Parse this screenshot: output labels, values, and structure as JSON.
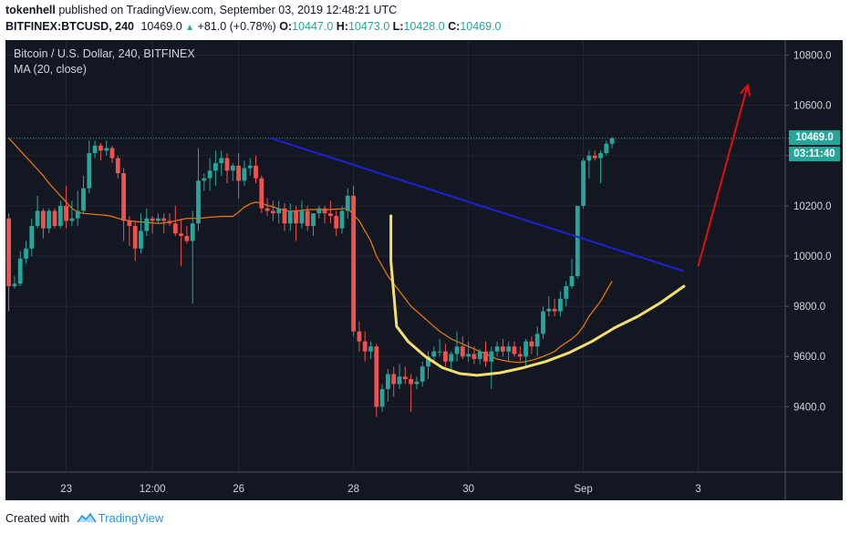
{
  "header": {
    "publisher": "tokenhell",
    "published_text": "published on TradingView.com, September 03, 2019 12:48:21 UTC",
    "symbol": "BITFINEX:BTCUSD, 240",
    "last": "10469.0",
    "change_icon": "triangle-up-icon",
    "change": "+81.0 (+0.78%)",
    "o_label": "O:",
    "o_value": "10447.0",
    "h_label": "H:",
    "h_value": "10473.0",
    "l_label": "L:",
    "l_value": "10428.0",
    "c_label": "C:",
    "c_value": "10469.0"
  },
  "legend": {
    "title": "Bitcoin / U.S. Dollar, 240, BITFINEX",
    "ma": "MA (20, close)"
  },
  "price_tags": {
    "last_price": "10469.0",
    "countdown": "03:11:40"
  },
  "footer": {
    "created_with": "Created with",
    "brand": "TradingView",
    "logo_icon": "tradingview-logo-icon"
  },
  "colors": {
    "background": "#131722",
    "up": "#26a69a",
    "down": "#ef5350",
    "ma_line": "#f57c00",
    "trendline": "#1f1fd8",
    "cup_curve": "#f5df6e",
    "arrow": "#e01010",
    "grid": "#242733",
    "axis_text": "#d1d4dc"
  },
  "chart_data": {
    "type": "candlestick",
    "title": "Bitcoin / U.S. Dollar, 240, BITFINEX",
    "timeframe": "240",
    "y_ticks": [
      "9400.0",
      "9600.0",
      "9800.0",
      "10000.0",
      "10200.0",
      "10400.0",
      "10600.0",
      "10800.0"
    ],
    "ylim": [
      9140,
      10860
    ],
    "x_ticks": [
      {
        "label": "23",
        "index": 10
      },
      {
        "label": "12:00",
        "index": 25
      },
      {
        "label": "26",
        "index": 40
      },
      {
        "label": "28",
        "index": 60
      },
      {
        "label": "30",
        "index": 80
      },
      {
        "label": "Sep",
        "index": 100
      },
      {
        "label": "3",
        "index": 120
      }
    ],
    "grid": true,
    "candles": [
      [
        10150,
        10170,
        9780,
        9880
      ],
      [
        9880,
        9920,
        9870,
        9890
      ],
      [
        9890,
        10020,
        9880,
        9990
      ],
      [
        9990,
        10060,
        9970,
        10030
      ],
      [
        10030,
        10150,
        10000,
        10120
      ],
      [
        10120,
        10240,
        10110,
        10180
      ],
      [
        10180,
        10190,
        10070,
        10110
      ],
      [
        10110,
        10190,
        10090,
        10180
      ],
      [
        10180,
        10190,
        10110,
        10120
      ],
      [
        10120,
        10220,
        10110,
        10200
      ],
      [
        10200,
        10280,
        10110,
        10140
      ],
      [
        10140,
        10220,
        10120,
        10150
      ],
      [
        10150,
        10260,
        10120,
        10180
      ],
      [
        10180,
        10320,
        10170,
        10270
      ],
      [
        10270,
        10460,
        10250,
        10410
      ],
      [
        10410,
        10460,
        10390,
        10440
      ],
      [
        10440,
        10450,
        10380,
        10420
      ],
      [
        10420,
        10460,
        10400,
        10430
      ],
      [
        10430,
        10440,
        10370,
        10390
      ],
      [
        10390,
        10400,
        10310,
        10330
      ],
      [
        10330,
        10350,
        10060,
        10140
      ],
      [
        10140,
        10160,
        10040,
        10120
      ],
      [
        10120,
        10140,
        9980,
        10030
      ],
      [
        10030,
        10170,
        10010,
        10100
      ],
      [
        10100,
        10190,
        10080,
        10150
      ],
      [
        10150,
        10160,
        10090,
        10140
      ],
      [
        10140,
        10170,
        10130,
        10150
      ],
      [
        10150,
        10170,
        10090,
        10140
      ],
      [
        10140,
        10170,
        10120,
        10130
      ],
      [
        10130,
        10200,
        10080,
        10090
      ],
      [
        10090,
        10150,
        9960,
        10080
      ],
      [
        10080,
        10120,
        10050,
        10060
      ],
      [
        10060,
        10180,
        9810,
        10130
      ],
      [
        10130,
        10430,
        10100,
        10300
      ],
      [
        10300,
        10330,
        10260,
        10310
      ],
      [
        10310,
        10390,
        10260,
        10340
      ],
      [
        10340,
        10420,
        10280,
        10370
      ],
      [
        10370,
        10420,
        10320,
        10390
      ],
      [
        10390,
        10410,
        10290,
        10340
      ],
      [
        10340,
        10370,
        10300,
        10360
      ],
      [
        10360,
        10410,
        10230,
        10300
      ],
      [
        10300,
        10380,
        10280,
        10350
      ],
      [
        10350,
        10390,
        10320,
        10360
      ],
      [
        10360,
        10400,
        10290,
        10310
      ],
      [
        10310,
        10320,
        10170,
        10190
      ],
      [
        10190,
        10230,
        10160,
        10180
      ],
      [
        10180,
        10220,
        10140,
        10170
      ],
      [
        10170,
        10220,
        10130,
        10190
      ],
      [
        10190,
        10210,
        10100,
        10130
      ],
      [
        10130,
        10210,
        10100,
        10180
      ],
      [
        10180,
        10200,
        10060,
        10130
      ],
      [
        10130,
        10220,
        10110,
        10180
      ],
      [
        10180,
        10200,
        10100,
        10120
      ],
      [
        10120,
        10160,
        10080,
        10170
      ],
      [
        10170,
        10200,
        10150,
        10190
      ],
      [
        10190,
        10200,
        10130,
        10170
      ],
      [
        10170,
        10220,
        10130,
        10160
      ],
      [
        10160,
        10180,
        10080,
        10110
      ],
      [
        10110,
        10200,
        10090,
        10180
      ],
      [
        10180,
        10270,
        10150,
        10240
      ],
      [
        10240,
        10280,
        9680,
        9700
      ],
      [
        9700,
        9740,
        9620,
        9660
      ],
      [
        9660,
        9700,
        9580,
        9620
      ],
      [
        9620,
        9660,
        9590,
        9640
      ],
      [
        9640,
        9650,
        9360,
        9400
      ],
      [
        9400,
        9490,
        9380,
        9470
      ],
      [
        9470,
        9550,
        9420,
        9530
      ],
      [
        9530,
        9560,
        9440,
        9490
      ],
      [
        9490,
        9570,
        9470,
        9520
      ],
      [
        9520,
        9560,
        9490,
        9510
      ],
      [
        9510,
        9530,
        9380,
        9490
      ],
      [
        9490,
        9520,
        9470,
        9500
      ],
      [
        9500,
        9580,
        9480,
        9560
      ],
      [
        9560,
        9620,
        9510,
        9600
      ],
      [
        9600,
        9640,
        9580,
        9620
      ],
      [
        9620,
        9670,
        9600,
        9620
      ],
      [
        9620,
        9650,
        9560,
        9580
      ],
      [
        9580,
        9620,
        9550,
        9610
      ],
      [
        9610,
        9700,
        9580,
        9640
      ],
      [
        9640,
        9680,
        9590,
        9600
      ],
      [
        9600,
        9660,
        9580,
        9610
      ],
      [
        9610,
        9640,
        9570,
        9590
      ],
      [
        9590,
        9630,
        9570,
        9620
      ],
      [
        9620,
        9660,
        9560,
        9580
      ],
      [
        9580,
        9640,
        9470,
        9620
      ],
      [
        9620,
        9660,
        9600,
        9640
      ],
      [
        9640,
        9670,
        9600,
        9620
      ],
      [
        9620,
        9660,
        9580,
        9640
      ],
      [
        9640,
        9660,
        9600,
        9610
      ],
      [
        9610,
        9640,
        9580,
        9600
      ],
      [
        9600,
        9670,
        9560,
        9660
      ],
      [
        9660,
        9680,
        9610,
        9640
      ],
      [
        9640,
        9720,
        9600,
        9690
      ],
      [
        9690,
        9800,
        9670,
        9780
      ],
      [
        9780,
        9840,
        9760,
        9790
      ],
      [
        9790,
        9830,
        9760,
        9780
      ],
      [
        9780,
        9860,
        9760,
        9830
      ],
      [
        9830,
        9900,
        9800,
        9880
      ],
      [
        9880,
        9990,
        9870,
        9920
      ],
      [
        9920,
        10200,
        9910,
        10200
      ],
      [
        10200,
        10390,
        10190,
        10380
      ],
      [
        10380,
        10420,
        10310,
        10400
      ],
      [
        10400,
        10420,
        10380,
        10390
      ],
      [
        10390,
        10420,
        10290,
        10410
      ],
      [
        10410,
        10460,
        10400,
        10447
      ],
      [
        10447,
        10473,
        10428,
        10469
      ]
    ],
    "ma_period": 20,
    "ma": [
      10470,
      10445,
      10420,
      10395,
      10370,
      10345,
      10320,
      10290,
      10265,
      10240,
      10215,
      10190,
      10175,
      10170,
      10168,
      10166,
      10164,
      10162,
      10158,
      10150,
      10145,
      10140,
      10138,
      10136,
      10134,
      10132,
      10130,
      10132,
      10135,
      10140,
      10145,
      10150,
      10150,
      10150,
      10152,
      10155,
      10156,
      10158,
      10158,
      10158,
      10175,
      10195,
      10208,
      10215,
      10210,
      10202,
      10196,
      10188,
      10182,
      10178,
      10180,
      10182,
      10185,
      10185,
      10185,
      10185,
      10185,
      10187,
      10188,
      10190,
      10165,
      10140,
      10100,
      10060,
      10000,
      9960,
      9920,
      9890,
      9860,
      9830,
      9800,
      9780,
      9760,
      9740,
      9720,
      9700,
      9685,
      9670,
      9660,
      9650,
      9640,
      9630,
      9620,
      9610,
      9600,
      9590,
      9585,
      9580,
      9578,
      9576,
      9580,
      9585,
      9592,
      9600,
      9610,
      9620,
      9640,
      9655,
      9670,
      9690,
      9720,
      9760,
      9790,
      9820,
      9860,
      9900
    ],
    "trendline": {
      "from": [
        45.5,
        10470
      ],
      "to": [
        117.5,
        9940
      ]
    },
    "cup_curve": [
      [
        66.5,
        10160
      ],
      [
        66.5,
        9980
      ],
      [
        67.5,
        9720
      ],
      [
        69.5,
        9660
      ],
      [
        72.5,
        9600
      ],
      [
        75.5,
        9555
      ],
      [
        78.5,
        9532
      ],
      [
        81.5,
        9525
      ],
      [
        85.5,
        9535
      ],
      [
        89.5,
        9555
      ],
      [
        93.5,
        9580
      ],
      [
        97.5,
        9615
      ],
      [
        101.5,
        9660
      ],
      [
        105.5,
        9715
      ],
      [
        109.5,
        9760
      ],
      [
        113.5,
        9815
      ],
      [
        117.5,
        9880
      ]
    ],
    "arrow": {
      "from": [
        120,
        9960
      ],
      "to": [
        128.6,
        10680
      ]
    },
    "last_price_line": 10469
  }
}
